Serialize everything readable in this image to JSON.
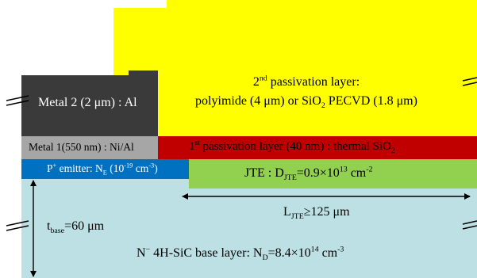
{
  "passivation2": {
    "line1_sup": "nd",
    "line1_lead": "2",
    "line1_rest": " passivation  layer:",
    "line2_a": "polyimide (4 μm) or SiO",
    "line2_sub": "2",
    "line2_b": " PECVD (1.8 μm)"
  },
  "metal2": {
    "label": "Metal 2 (2 μm) : Al"
  },
  "metal1": {
    "label": "Metal 1(550 nm) : Ni/Al"
  },
  "passivation1": {
    "lead": "1",
    "sup": "st",
    "rest": " passivation  layer (40 nm) : thermal SiO",
    "sub": "2"
  },
  "emitter": {
    "a": "P",
    "sup1": "+",
    "b": " emitter: N",
    "sub": "E",
    "c": " (10",
    "sup2": "-19",
    "d": " cm",
    "sup3": "-3",
    "e": ")"
  },
  "jte": {
    "a": "JTE : D",
    "sub": "JTE",
    "b": "=0.9×10",
    "sup1": "13",
    "c": " cm",
    "sup2": "-2"
  },
  "ljte": {
    "a": "L",
    "sub": "JTE",
    "b": "≥125 μm"
  },
  "tbase": {
    "a": "t",
    "sub": "base",
    "b": "=60 μm"
  },
  "base": {
    "a": "N",
    "sup1": "−",
    "b": " 4H-SiC base layer: N",
    "sub": "D",
    "c": "=8.4×10",
    "sup2": "14",
    "d": " cm",
    "sup3": "-3"
  },
  "colors": {
    "passivation2": "#ffff00",
    "metal2": "#3a3a3a",
    "metal1": "#a6a6a6",
    "passivation1": "#c00000",
    "emitter": "#0070c0",
    "jte": "#92d050",
    "base": "#bde0e4"
  }
}
